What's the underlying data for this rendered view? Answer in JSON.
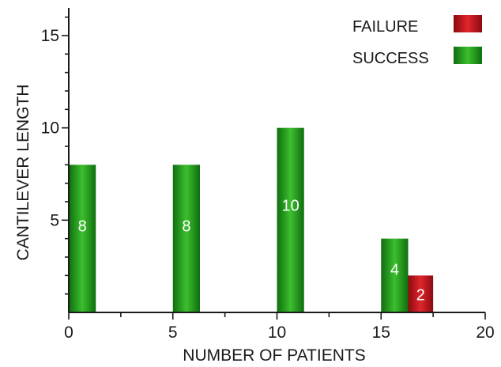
{
  "chart_data": {
    "type": "bar",
    "title": "",
    "xlabel": "NUMBER OF PATIENTS",
    "ylabel": "CANTILEVER LENGTH",
    "xlim": [
      0,
      20
    ],
    "ylim": [
      0,
      16.5
    ],
    "x_ticks": [
      0,
      5,
      10,
      15,
      20
    ],
    "y_ticks": [
      5,
      10,
      15
    ],
    "grid": false,
    "legend_position": "top-right",
    "series": [
      {
        "name": "SUCCESS",
        "color": "#1f9a1f",
        "bars": [
          {
            "x_start": 0,
            "x_end": 1.3,
            "value": 8,
            "label": "8"
          },
          {
            "x_start": 5,
            "x_end": 6.3,
            "value": 8,
            "label": "8"
          },
          {
            "x_start": 10,
            "x_end": 11.3,
            "value": 10,
            "label": "10"
          },
          {
            "x_start": 15,
            "x_end": 16.3,
            "value": 4,
            "label": "4"
          }
        ]
      },
      {
        "name": "FAILURE",
        "color": "#c0141c",
        "bars": [
          {
            "x_start": 16.3,
            "x_end": 17.5,
            "value": 2,
            "label": "2"
          }
        ]
      }
    ],
    "legend": [
      {
        "label": "FAILURE",
        "color": "#c0141c"
      },
      {
        "label": "SUCCESS",
        "color": "#1f9a1f"
      }
    ]
  }
}
